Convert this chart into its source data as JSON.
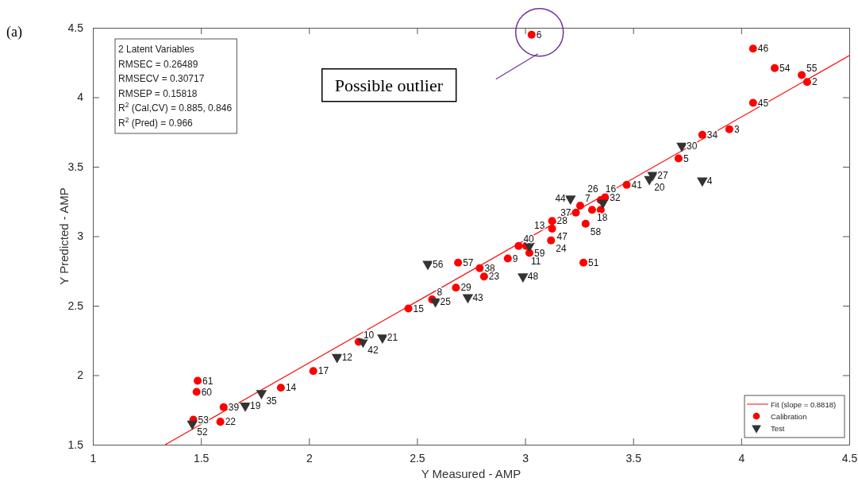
{
  "chart_data": {
    "type": "scatter",
    "xlabel": "Y Measured - AMP",
    "ylabel": "Y Predicted - AMP",
    "xlim": [
      1,
      4.5
    ],
    "xticks": [
      1,
      1.5,
      2,
      2.5,
      3,
      3.5,
      4,
      4.5
    ],
    "ylim": [
      1.5,
      4.5
    ],
    "yticks": [
      1.5,
      2,
      2.5,
      3,
      3.5,
      4,
      4.5
    ],
    "legend": "bottom right",
    "series": [
      {
        "name": "Fit (slope = 0.8818)",
        "type": "line",
        "color": "#ff0000",
        "x": [
          1.335,
          4.5
        ],
        "values": [
          1.5,
          4.3
        ],
        "marker": "none",
        "line_style": "solid"
      },
      {
        "name": "Calibration",
        "color": "#ff0000",
        "marker": "circle",
        "x": [
          3.03,
          4.055,
          4.155,
          4.28,
          4.305,
          4.055,
          3.945,
          3.82,
          3.71,
          3.47,
          3.37,
          3.35,
          3.255,
          3.235,
          3.31,
          3.35,
          3.28,
          3.125,
          3.125,
          3.12,
          2.97,
          3.005,
          3.02,
          2.92,
          3.27,
          2.69,
          2.79,
          2.81,
          2.68,
          2.57,
          2.46,
          2.23,
          2.02,
          1.87,
          1.605,
          1.59,
          1.485,
          1.48,
          1.465
        ],
        "values": [
          4.45,
          4.35,
          4.21,
          4.16,
          4.11,
          3.96,
          3.77,
          3.73,
          3.56,
          3.37,
          3.28,
          3.26,
          3.22,
          3.17,
          3.19,
          3.19,
          3.09,
          3.11,
          3.055,
          2.97,
          2.93,
          2.93,
          2.88,
          2.84,
          2.81,
          2.81,
          2.77,
          2.71,
          2.63,
          2.545,
          2.48,
          2.24,
          2.03,
          1.91,
          1.77,
          1.665,
          1.96,
          1.88,
          1.68
        ]
      },
      {
        "name": "Test",
        "color": "#333333",
        "marker": "triangle",
        "x": [
          3.725,
          3.59,
          3.575,
          3.82,
          3.21,
          3.36,
          3.02,
          2.55,
          2.99,
          2.735,
          2.585,
          2.25,
          2.34,
          2.13,
          1.78,
          1.705,
          1.46
        ],
        "values": [
          3.65,
          3.44,
          3.41,
          3.4,
          3.27,
          3.24,
          2.93,
          2.8,
          2.71,
          2.56,
          2.53,
          2.24,
          2.27,
          2.13,
          1.87,
          1.78,
          1.65
        ]
      }
    ],
    "annotations": [
      "(a)",
      "2 Latent Variables",
      "RMSEC = 0.26489",
      "RMSECV = 0.30717",
      "RMSEP = 0.15818",
      "R$^{2}$ (Cal,CV) = 0.885, 0.846",
      "R$^{2}$ (Pred) = 0.966",
      "Possible outlier",
      {
        "text": "6",
        "x": 3.03,
        "y": 4.45
      },
      {
        "text": "46",
        "x": 4.055,
        "y": 4.35
      },
      {
        "text": "54",
        "x": 4.155,
        "y": 4.21
      },
      {
        "text": "55",
        "x": 4.28,
        "y": 4.16
      },
      {
        "text": "2",
        "x": 4.305,
        "y": 4.11
      },
      {
        "text": "45",
        "x": 4.055,
        "y": 3.96
      },
      {
        "text": "3",
        "x": 3.945,
        "y": 3.77
      },
      {
        "text": "34",
        "x": 3.82,
        "y": 3.73
      },
      {
        "text": "5",
        "x": 3.71,
        "y": 3.56
      },
      {
        "text": "41",
        "x": 3.47,
        "y": 3.37
      },
      {
        "text": "32",
        "x": 3.37,
        "y": 3.28
      },
      {
        "text": "7",
        "x": 3.255,
        "y": 3.22
      },
      {
        "text": "37",
        "x": 3.235,
        "y": 3.17
      },
      {
        "text": "18",
        "x": 3.31,
        "y": 3.19
      },
      {
        "text": "16",
        "x": 3.35,
        "y": 3.19
      },
      {
        "text": "58",
        "x": 3.28,
        "y": 3.09
      },
      {
        "text": "28",
        "x": 3.125,
        "y": 3.11
      },
      {
        "text": "47",
        "x": 3.125,
        "y": 3.055
      },
      {
        "text": "24",
        "x": 3.12,
        "y": 2.97
      },
      {
        "text": "40",
        "x": 2.97,
        "y": 2.93
      },
      {
        "text": "11",
        "x": 3.005,
        "y": 2.93
      },
      {
        "text": "59",
        "x": 3.02,
        "y": 2.88
      },
      {
        "text": "9",
        "x": 2.92,
        "y": 2.84
      },
      {
        "text": "51",
        "x": 3.27,
        "y": 2.81
      },
      {
        "text": "57",
        "x": 2.69,
        "y": 2.81
      },
      {
        "text": "38",
        "x": 2.79,
        "y": 2.77
      },
      {
        "text": "23",
        "x": 2.81,
        "y": 2.71
      },
      {
        "text": "29",
        "x": 2.68,
        "y": 2.63
      },
      {
        "text": "8",
        "x": 2.57,
        "y": 2.545
      },
      {
        "text": "15",
        "x": 2.46,
        "y": 2.48
      },
      {
        "text": "10",
        "x": 2.23,
        "y": 2.24
      },
      {
        "text": "17",
        "x": 2.02,
        "y": 2.03
      },
      {
        "text": "14",
        "x": 1.87,
        "y": 1.91
      },
      {
        "text": "39",
        "x": 1.605,
        "y": 1.77
      },
      {
        "text": "22",
        "x": 1.59,
        "y": 1.665
      },
      {
        "text": "61",
        "x": 1.485,
        "y": 1.96
      },
      {
        "text": "60",
        "x": 1.48,
        "y": 1.88
      },
      {
        "text": "53",
        "x": 1.465,
        "y": 1.68
      },
      {
        "text": "30",
        "x": 3.725,
        "y": 3.65
      },
      {
        "text": "27",
        "x": 3.59,
        "y": 3.44
      },
      {
        "text": "20",
        "x": 3.575,
        "y": 3.41
      },
      {
        "text": "4",
        "x": 3.82,
        "y": 3.4
      },
      {
        "text": "44",
        "x": 3.21,
        "y": 3.27
      },
      {
        "text": "26",
        "x": 3.36,
        "y": 3.24
      },
      {
        "text": "13",
        "x": 3.02,
        "y": 2.93
      },
      {
        "text": "56",
        "x": 2.55,
        "y": 2.8
      },
      {
        "text": "48",
        "x": 2.99,
        "y": 2.71
      },
      {
        "text": "43",
        "x": 2.735,
        "y": 2.56
      },
      {
        "text": "25",
        "x": 2.585,
        "y": 2.53
      },
      {
        "text": "42",
        "x": 2.25,
        "y": 2.24
      },
      {
        "text": "21",
        "x": 2.34,
        "y": 2.27
      },
      {
        "text": "12",
        "x": 2.13,
        "y": 2.13
      },
      {
        "text": "35",
        "x": 1.78,
        "y": 1.87
      },
      {
        "text": "19",
        "x": 1.705,
        "y": 1.78
      },
      {
        "text": "52",
        "x": 1.46,
        "y": 1.65
      }
    ]
  }
}
